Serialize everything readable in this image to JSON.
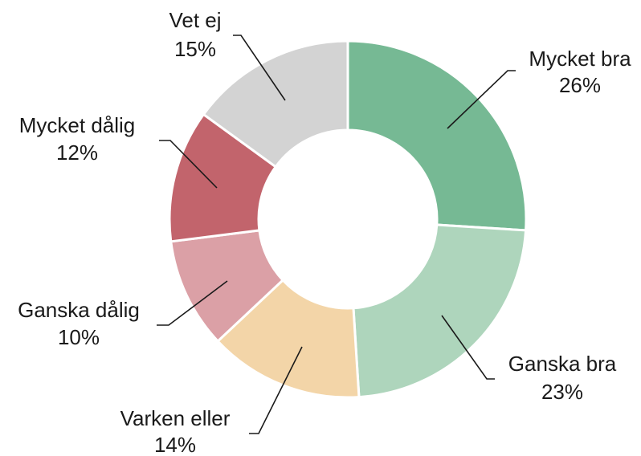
{
  "chart_data": {
    "type": "donut",
    "categories": [
      "Mycket bra",
      "Ganska bra",
      "Varken eller",
      "Ganska dålig",
      "Mycket dålig",
      "Vet ej"
    ],
    "values": [
      26,
      23,
      14,
      10,
      12,
      15
    ],
    "value_labels": [
      "26%",
      "23%",
      "14%",
      "10%",
      "12%",
      "15%"
    ],
    "colors": [
      "#76b994",
      "#aed5bc",
      "#f3d5a8",
      "#dba0a6",
      "#c2646c",
      "#d3d3d3"
    ]
  }
}
